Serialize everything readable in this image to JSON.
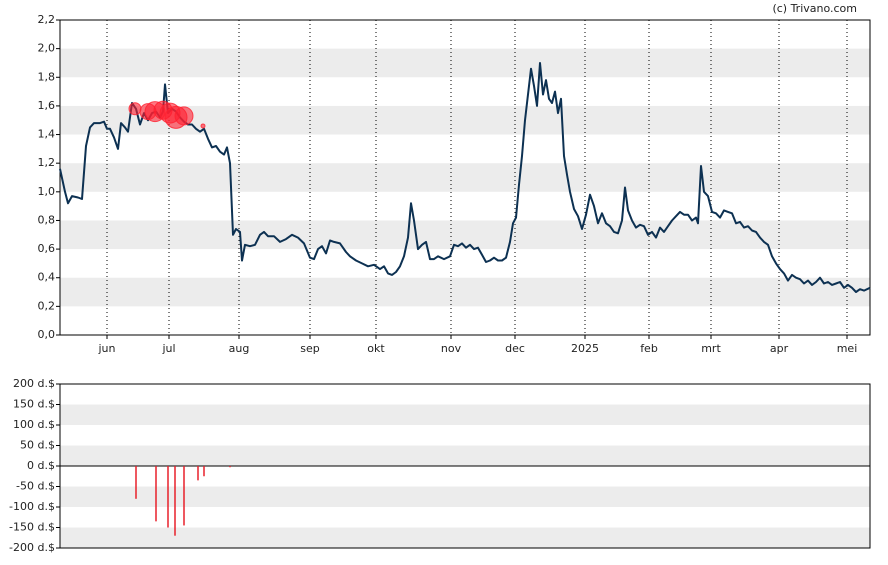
{
  "chart_data": [
    {
      "type": "line",
      "credit": "(c) Trivano.com",
      "xlim": [
        0,
        810
      ],
      "xticks": [
        {
          "value": 47,
          "label": "jun"
        },
        {
          "value": 109,
          "label": "jul"
        },
        {
          "value": 179,
          "label": "aug"
        },
        {
          "value": 250,
          "label": "sep"
        },
        {
          "value": 316,
          "label": "okt"
        },
        {
          "value": 391,
          "label": "nov"
        },
        {
          "value": 455,
          "label": "dec"
        },
        {
          "value": 525,
          "label": "2025"
        },
        {
          "value": 589,
          "label": "feb"
        },
        {
          "value": 651,
          "label": "mrt"
        },
        {
          "value": 719,
          "label": "apr"
        },
        {
          "value": 787,
          "label": "mei"
        }
      ],
      "ylim": [
        0,
        2.2
      ],
      "yticks": [
        {
          "value": 0,
          "label": "0,0"
        },
        {
          "value": 0.2,
          "label": "0,2"
        },
        {
          "value": 0.4,
          "label": "0,4"
        },
        {
          "value": 0.6,
          "label": "0,6"
        },
        {
          "value": 0.8,
          "label": "0,8"
        },
        {
          "value": 1.0,
          "label": "1,0"
        },
        {
          "value": 1.2,
          "label": "1,2"
        },
        {
          "value": 1.4,
          "label": "1,4"
        },
        {
          "value": 1.6,
          "label": "1,6"
        },
        {
          "value": 1.8,
          "label": "1,8"
        },
        {
          "value": 2.0,
          "label": "2,0"
        },
        {
          "value": 2.2,
          "label": "2,2"
        }
      ],
      "series": [
        {
          "color": "#0d3152",
          "x": [
            0,
            5,
            8,
            12,
            18,
            22,
            26,
            30,
            34,
            40,
            44,
            47,
            50,
            54,
            58,
            61,
            65,
            68,
            72,
            76,
            80,
            84,
            88,
            92,
            96,
            100,
            103,
            105,
            108,
            112,
            116,
            120,
            124,
            128,
            132,
            136,
            140,
            144,
            148,
            152,
            156,
            160,
            164,
            167,
            170,
            173,
            176,
            180,
            182,
            185,
            190,
            195,
            200,
            204,
            208,
            214,
            220,
            226,
            232,
            238,
            244,
            250,
            254,
            258,
            262,
            266,
            270,
            274,
            280,
            286,
            290,
            296,
            302,
            308,
            314,
            320,
            324,
            328,
            332,
            336,
            340,
            344,
            348,
            351,
            354,
            358,
            362,
            366,
            370,
            374,
            378,
            384,
            390,
            394,
            398,
            402,
            406,
            410,
            414,
            418,
            422,
            426,
            430,
            434,
            438,
            442,
            446,
            450,
            453,
            456,
            459,
            462,
            465,
            468,
            471,
            474,
            477,
            480,
            483,
            486,
            489,
            492,
            495,
            498,
            501,
            504,
            507,
            510,
            514,
            518,
            522,
            526,
            530,
            534,
            538,
            542,
            546,
            550,
            554,
            558,
            562,
            565,
            568,
            572,
            576,
            580,
            584,
            588,
            592,
            596,
            600,
            604,
            608,
            612,
            616,
            620,
            624,
            628,
            632,
            636,
            638,
            641,
            644,
            648,
            652,
            656,
            660,
            664,
            668,
            672,
            676,
            680,
            684,
            688,
            692,
            696,
            700,
            704,
            708,
            712,
            716,
            720,
            724,
            728,
            732,
            736,
            740,
            744,
            748,
            752,
            756,
            760,
            764,
            768,
            772,
            776,
            780,
            784,
            788,
            792,
            796,
            800,
            804,
            810
          ],
          "values": [
            1.16,
            1.0,
            0.92,
            0.97,
            0.96,
            0.95,
            1.32,
            1.45,
            1.48,
            1.48,
            1.49,
            1.44,
            1.44,
            1.38,
            1.3,
            1.48,
            1.45,
            1.42,
            1.62,
            1.58,
            1.47,
            1.55,
            1.5,
            1.55,
            1.56,
            1.52,
            1.56,
            1.75,
            1.55,
            1.58,
            1.56,
            1.52,
            1.49,
            1.47,
            1.47,
            1.44,
            1.42,
            1.44,
            1.37,
            1.31,
            1.32,
            1.28,
            1.26,
            1.31,
            1.2,
            0.7,
            0.74,
            0.72,
            0.52,
            0.63,
            0.62,
            0.63,
            0.7,
            0.72,
            0.69,
            0.69,
            0.65,
            0.67,
            0.7,
            0.68,
            0.64,
            0.54,
            0.53,
            0.6,
            0.62,
            0.57,
            0.66,
            0.65,
            0.64,
            0.58,
            0.55,
            0.52,
            0.5,
            0.48,
            0.49,
            0.46,
            0.48,
            0.43,
            0.42,
            0.44,
            0.48,
            0.55,
            0.68,
            0.92,
            0.8,
            0.6,
            0.63,
            0.65,
            0.53,
            0.53,
            0.55,
            0.53,
            0.55,
            0.63,
            0.62,
            0.64,
            0.61,
            0.63,
            0.6,
            0.61,
            0.56,
            0.51,
            0.52,
            0.54,
            0.52,
            0.52,
            0.54,
            0.65,
            0.78,
            0.82,
            1.05,
            1.25,
            1.5,
            1.68,
            1.86,
            1.74,
            1.6,
            1.9,
            1.68,
            1.78,
            1.65,
            1.62,
            1.7,
            1.55,
            1.65,
            1.25,
            1.12,
            1.0,
            0.88,
            0.83,
            0.74,
            0.84,
            0.98,
            0.9,
            0.78,
            0.85,
            0.78,
            0.76,
            0.72,
            0.71,
            0.8,
            1.03,
            0.87,
            0.8,
            0.75,
            0.77,
            0.76,
            0.7,
            0.72,
            0.68,
            0.75,
            0.72,
            0.76,
            0.8,
            0.83,
            0.86,
            0.84,
            0.84,
            0.8,
            0.82,
            0.78,
            1.18,
            1.0,
            0.97,
            0.86,
            0.85,
            0.82,
            0.87,
            0.86,
            0.85,
            0.78,
            0.79,
            0.75,
            0.76,
            0.73,
            0.72,
            0.68,
            0.65,
            0.63,
            0.55,
            0.5,
            0.46,
            0.43,
            0.38,
            0.42,
            0.4,
            0.39,
            0.36,
            0.38,
            0.35,
            0.37,
            0.4,
            0.36,
            0.37,
            0.35,
            0.36,
            0.37,
            0.33,
            0.35,
            0.33,
            0.3,
            0.32,
            0.31,
            0.33
          ]
        }
      ],
      "bubbles": {
        "color": "#ff2030",
        "x": [
          75,
          88,
          95,
          103,
          110,
          116,
          124,
          143
        ],
        "values": [
          1.58,
          1.56,
          1.56,
          1.57,
          1.55,
          1.52,
          1.53,
          1.46
        ],
        "sizes": [
          6,
          8,
          10,
          9,
          10,
          11,
          9,
          2
        ]
      }
    },
    {
      "type": "bar",
      "color": "#e8202a",
      "xlim": [
        0,
        810
      ],
      "ylim": [
        -200,
        200
      ],
      "yticks": [
        {
          "value": 200,
          "label": "200 d.$"
        },
        {
          "value": 150,
          "label": "150 d.$"
        },
        {
          "value": 100,
          "label": "100 d.$"
        },
        {
          "value": 50,
          "label": "50 d.$"
        },
        {
          "value": 0,
          "label": "0 d.$"
        },
        {
          "value": -50,
          "label": "-50 d.$"
        },
        {
          "value": -100,
          "label": "-100 d.$"
        },
        {
          "value": -150,
          "label": "-150 d.$"
        },
        {
          "value": -200,
          "label": "-200 d.$"
        }
      ],
      "x": [
        76,
        96,
        108,
        115,
        124,
        138,
        144,
        170
      ],
      "values": [
        -80,
        -135,
        -150,
        -170,
        -145,
        -35,
        -25,
        -3
      ]
    }
  ]
}
